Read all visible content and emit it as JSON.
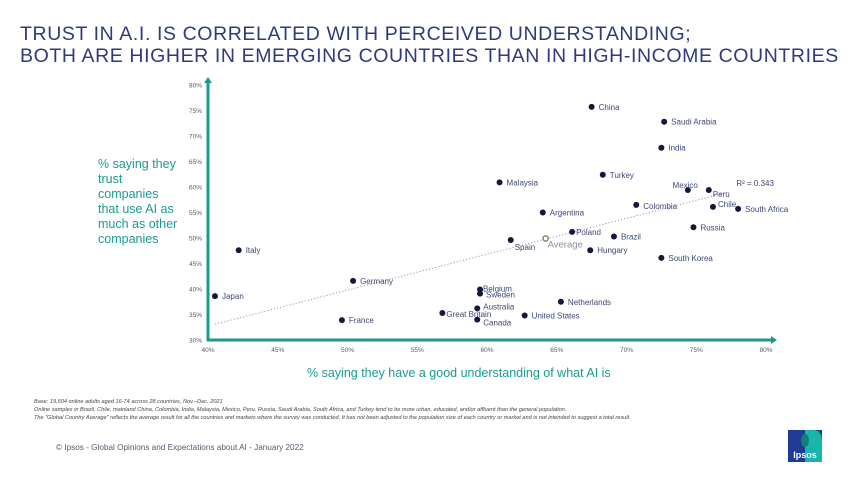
{
  "title": {
    "line1": "TRUST IN A.I. IS CORRELATED WITH PERCEIVED UNDERSTANDING;",
    "line2": "BOTH ARE HIGHER IN EMERGING COUNTRIES THAN IN HIGH-INCOME COUNTRIES"
  },
  "colors": {
    "title": "#2f3a7d",
    "axis": "#1a9a8e",
    "point": "#14173f",
    "label": "#3c4676",
    "average_label": "#8a8f9a",
    "trendline": "#b58ab0"
  },
  "chart_data": {
    "type": "scatter",
    "title": "Trust in A.I. is correlated with perceived understanding; both are higher in emerging countries than in high-income countries",
    "xlabel": "% saying they have a good understanding of what AI is",
    "ylabel": "% saying they trust companies that use AI as much as other companies",
    "xlim": [
      40,
      80
    ],
    "ylim": [
      30,
      80
    ],
    "x_ticks": [
      "40%",
      "45%",
      "50%",
      "55%",
      "60%",
      "65%",
      "70%",
      "75%",
      "80%"
    ],
    "y_ticks": [
      "30%",
      "35%",
      "40%",
      "45%",
      "50%",
      "55%",
      "60%",
      "65%",
      "70%",
      "75%",
      "80%"
    ],
    "grid": false,
    "points": [
      {
        "label": "China",
        "x": 67.5,
        "y": 75.7
      },
      {
        "label": "Saudi Arabia",
        "x": 72.7,
        "y": 72.8
      },
      {
        "label": "India",
        "x": 72.5,
        "y": 67.7
      },
      {
        "label": "Turkey",
        "x": 68.3,
        "y": 62.4
      },
      {
        "label": "Malaysia",
        "x": 60.9,
        "y": 60.9
      },
      {
        "label": "Mexico",
        "x": 74.4,
        "y": 59.4
      },
      {
        "label": "Peru",
        "x": 75.9,
        "y": 59.4
      },
      {
        "label": "Colombia",
        "x": 70.7,
        "y": 56.5
      },
      {
        "label": "Chile",
        "x": 76.2,
        "y": 56.1
      },
      {
        "label": "South Africa",
        "x": 78.0,
        "y": 55.7
      },
      {
        "label": "Argentina",
        "x": 64.0,
        "y": 55.0
      },
      {
        "label": "Russia",
        "x": 74.8,
        "y": 52.1
      },
      {
        "label": "Poland",
        "x": 66.1,
        "y": 51.2
      },
      {
        "label": "Brazil",
        "x": 69.1,
        "y": 50.3
      },
      {
        "label": "Spain",
        "x": 61.7,
        "y": 49.6
      },
      {
        "label": "Hungary",
        "x": 67.4,
        "y": 47.6
      },
      {
        "label": "Italy",
        "x": 42.2,
        "y": 47.6
      },
      {
        "label": "South Korea",
        "x": 72.5,
        "y": 46.1
      },
      {
        "label": "Germany",
        "x": 50.4,
        "y": 41.6
      },
      {
        "label": "Belgium",
        "x": 59.5,
        "y": 39.9
      },
      {
        "label": "Sweden",
        "x": 59.5,
        "y": 39.1
      },
      {
        "label": "Japan",
        "x": 40.5,
        "y": 38.6
      },
      {
        "label": "Netherlands",
        "x": 65.3,
        "y": 37.5
      },
      {
        "label": "Australia",
        "x": 59.3,
        "y": 36.2
      },
      {
        "label": "Great Britain",
        "x": 56.8,
        "y": 35.3
      },
      {
        "label": "United States",
        "x": 62.7,
        "y": 34.8
      },
      {
        "label": "Canada",
        "x": 59.3,
        "y": 34.0
      },
      {
        "label": "France",
        "x": 49.6,
        "y": 33.9
      }
    ],
    "average": {
      "label": "Average",
      "x": 64.2,
      "y": 49.9
    },
    "trendline": {
      "x": [
        40.5,
        77.3
      ],
      "y": [
        33.1,
        59.0
      ],
      "r_squared_label": "R² = 0.343"
    }
  },
  "notes": {
    "line1": "Base: 19,504 online adults aged 16-74 across 28 countries, Nov.–Dec. 2021",
    "line2": "Online samples in Brazil, Chile, mainland China, Colombia, India, Malaysia, Mexico, Peru, Russia, Saudi Arabia, South Africa, and Turkey tend to be more urban, educated, and/or affluent than the general population.",
    "line3": "The \"Global  Country Average\" reflects the average result for all the countries and markets where the survey was conducted. It has not been adjusted to the population size of each country or market and is not intended to suggest a total result."
  },
  "footer": "© Ipsos - Global Opinions and Expectations about AI - January 2022",
  "logo": {
    "text": "Ipsos"
  }
}
